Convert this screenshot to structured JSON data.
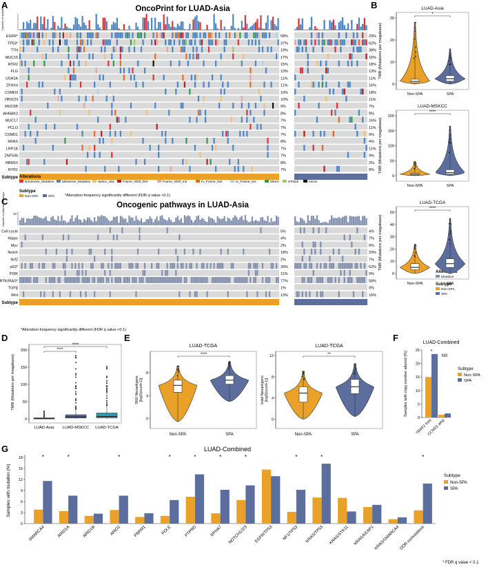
{
  "colors": {
    "non_spa": "#E9A227",
    "spa": "#5B6E9E",
    "teal": "#2E9BAB",
    "grid": "#DADADA",
    "missense": "#4E86C6",
    "nonsense": "#D8353A",
    "splice": "#F2C078",
    "fs_del": "#B22222",
    "fs_ins": "#E7A4A4",
    "if_del": "#E66C2C",
    "if_ins": "#A9D3EA",
    "silent": "#2E9C4A",
    "flank5": "#9ACD5B",
    "intron": "#111111",
    "pathway": "#8391AE"
  },
  "panel_letters": [
    "A",
    "B",
    "C",
    "D",
    "E",
    "F",
    "G"
  ],
  "panel_a": {
    "title": "OncoPrint for LUAD-Asia",
    "y_label": "Number of mutations",
    "genes": [
      "EGFR*",
      "TP53*",
      "TTN",
      "MUC16",
      "RYR2",
      "FLG",
      "USH2A",
      "ZFHX4",
      "CSMD3",
      "OBSCN",
      "MUC5B",
      "AHNAK2",
      "MUC17",
      "PCLO",
      "CSMD1",
      "KRAS",
      "LRP1B",
      "ZNF536",
      "RBM10",
      "RYR1"
    ],
    "left_pct": [
      "58%",
      "37%",
      "19%",
      "17%",
      "15%",
      "13%",
      "11%",
      "11%",
      "10%",
      "10%",
      "9%",
      "8%",
      "7%",
      "7%",
      "7%",
      "8%",
      "7%",
      "7%",
      "8%",
      "7%"
    ],
    "right_pct": [
      "29%",
      "62%",
      "38%",
      "16%",
      "18%",
      "13%",
      "11%",
      "16%",
      "18%",
      "11%",
      "7%",
      "9%",
      "16%",
      "11%",
      "9%",
      "4%",
      "11%",
      "9%",
      "2%",
      "9%"
    ],
    "subtype_label": "Subtype",
    "legend_title_alt": "Alterations",
    "legend_alt": [
      "Nonsense_Mutation",
      "Missense_Mutation",
      "Splice_Site",
      "Frame_Shift_Del",
      "Frame_Shift_Ins",
      "In_Frame_Del",
      "In_Frame_Ins",
      "Silent",
      "5'Flank",
      "Intron"
    ],
    "legend_title_sub": "Subtype",
    "legend_sub": [
      "Non-SPA",
      "SPA"
    ],
    "note": "*Alteration frequency significantly different (FDR q value <0.1)"
  },
  "panel_c": {
    "title": "Oncogenic pathways in LUAD-Asia",
    "y_label": "Number of altered pathways",
    "y_top": "10",
    "pathways": [
      "Cell cycle",
      "Hippo",
      "Myc",
      "Notch",
      "Nrf2",
      "p53*",
      "PI3K",
      "RTK/RAS*",
      "TGFβ",
      "Wnt"
    ],
    "left_pct": [
      "5%",
      "4%",
      "2%",
      "18%",
      "2%",
      "39%",
      "11%",
      "77%",
      "1%",
      "13%"
    ],
    "right_pct": [
      "4%",
      "7%",
      "9%",
      "29%",
      "7%",
      "62%",
      "9%",
      "58%",
      "0%",
      "16%"
    ],
    "subtype_label": "Subtype",
    "legend_title_alt": "Alterations",
    "legend_alt": [
      "Mutation"
    ],
    "legend_title_sub": "Subtype",
    "legend_sub": [
      "Non-SPA",
      "SPA"
    ],
    "note": "*Alteration frequency significantly different (FDR q value <0.1)"
  },
  "chart_data": [
    {
      "id": "B",
      "type": "violin",
      "ylabel": "TMB (Mutations per megabase)",
      "panels": [
        {
          "title": "LUAD-Asia",
          "ylim": [
            0,
            30
          ],
          "ticks": [
            0,
            10,
            20,
            30
          ],
          "sig": "*",
          "groups": [
            {
              "name": "Non-SPA",
              "median": 1.2,
              "q1": 0.6,
              "q3": 2.2,
              "min": 0,
              "max": 28
            },
            {
              "name": "SPA",
              "median": 2.4,
              "q1": 1.3,
              "q3": 3.8,
              "min": 0,
              "max": 16
            }
          ]
        },
        {
          "title": "LUAD-MSKCC",
          "ylim": [
            0,
            200
          ],
          "ticks": [
            0,
            50,
            100,
            150,
            200
          ],
          "sig": "****",
          "groups": [
            {
              "name": "Non-SPA",
              "median": 5,
              "q1": 2,
              "q3": 9,
              "min": 0,
              "max": 48
            },
            {
              "name": "SPA",
              "median": 10,
              "q1": 5,
              "q3": 20,
              "min": 0,
              "max": 165
            }
          ]
        },
        {
          "title": "LUAD-TCGA",
          "ylim": [
            0,
            50
          ],
          "ticks": [
            0,
            10,
            20,
            30,
            40,
            50
          ],
          "sig": "****",
          "groups": [
            {
              "name": "Non-SPA",
              "median": 5,
              "q1": 3,
              "q3": 8,
              "min": 0,
              "max": 24
            },
            {
              "name": "SPA",
              "median": 8,
              "q1": 5,
              "q3": 12,
              "min": 0,
              "max": 45
            }
          ]
        }
      ]
    },
    {
      "id": "D",
      "type": "box",
      "ylabel": "TMB (Mutations per megabase)",
      "ylim": [
        0,
        200
      ],
      "ticks": [
        0,
        50,
        100,
        150,
        200
      ],
      "categories": [
        "LUAD-Asia",
        "LUAD-MSKCC",
        "LUAD-TCGA"
      ],
      "boxes": [
        {
          "median": 1.5,
          "q1": 0.8,
          "q3": 2.8,
          "lower": 0,
          "upper": 6,
          "max": 28
        },
        {
          "median": 6,
          "q1": 2.5,
          "q3": 12,
          "lower": 0,
          "upper": 28,
          "max": 185
        },
        {
          "median": 7,
          "q1": 3,
          "q3": 17,
          "lower": 0,
          "upper": 38,
          "max": 160
        }
      ],
      "comparisons": [
        {
          "from": 0,
          "to": 1,
          "label": "****"
        },
        {
          "from": 0,
          "to": 2,
          "label": "****"
        }
      ]
    },
    {
      "id": "E",
      "type": "violin",
      "panels": [
        {
          "title": "LUAD-TCGA",
          "ylabel": "SNV Neoantigens [log2(count+1)]",
          "ylim": [
            -1,
            11
          ],
          "ticks": [
            0,
            4,
            8
          ],
          "sig": "****",
          "groups": [
            {
              "name": "Non-SPA",
              "median": 5.8,
              "q1": 4.6,
              "q3": 6.7,
              "min": -0.5,
              "max": 9.2
            },
            {
              "name": "SPA",
              "median": 6.7,
              "q1": 6.0,
              "q3": 7.5,
              "min": 3,
              "max": 10
            }
          ]
        },
        {
          "title": "LUAD-TCGA",
          "ylabel": "Indel Neoantigens [log2(count+1)]",
          "ylim": [
            -1,
            12
          ],
          "ticks": [
            0,
            4,
            8,
            12
          ],
          "sig": "**",
          "groups": [
            {
              "name": "Non-SPA",
              "median": 4.9,
              "q1": 3.2,
              "q3": 6.1,
              "min": 0,
              "max": 9
            },
            {
              "name": "SPA",
              "median": 6.1,
              "q1": 4.8,
              "q3": 7.5,
              "min": 0.5,
              "max": 10.5
            }
          ]
        }
      ]
    },
    {
      "id": "F",
      "type": "bar",
      "title": "LUAD-Combined",
      "ylabel": "Samples with copy number altered (%)",
      "ylim": [
        0,
        25
      ],
      "ticks": [
        0,
        5,
        10,
        15,
        20,
        25
      ],
      "categories": [
        "TRAF2 loss",
        "CCND1 amp"
      ],
      "series": [
        {
          "name": "Non-SPA",
          "values": [
            15,
            1
          ]
        },
        {
          "name": "SPA",
          "values": [
            23.5,
            1.5
          ]
        }
      ],
      "sig": [
        "*",
        "NS"
      ],
      "legend_title": "Subtype"
    },
    {
      "id": "G",
      "type": "bar",
      "title": "LUAD-Combined",
      "ylabel": "Samples with mutation (%)",
      "ylim": [
        0,
        18
      ],
      "ticks": [
        0,
        3,
        6,
        9,
        12,
        15,
        18
      ],
      "categories": [
        "SMARCA4",
        "ARID1A",
        "ARID1B",
        "ARID2",
        "PBRM1",
        "POLE",
        "PTPRD",
        "EPHA7",
        "NOTCH1/2/3",
        "EGFR/TP53",
        "NF1/TP53",
        "KRAS/TP53",
        "KRAS/STK11",
        "KRAS/KEAP1",
        "KRAS/SMARCA4",
        "DDR comutations"
      ],
      "series": [
        {
          "name": "Non-SPA",
          "values": [
            3.8,
            3.4,
            2.1,
            3.7,
            1.8,
            2.1,
            7.3,
            2.8,
            6.4,
            14.7,
            3.2,
            7.1,
            7.0,
            4.5,
            1.2,
            3.6
          ]
        },
        {
          "name": "SPA",
          "values": [
            11.6,
            7.6,
            2.7,
            7.6,
            2.8,
            6.4,
            13.4,
            9.2,
            10.4,
            12.9,
            9.2,
            16.3,
            3.3,
            5.1,
            1.7,
            10.9
          ]
        }
      ],
      "sig": [
        "*",
        "*",
        "",
        "*",
        "",
        "*",
        "*",
        "*",
        "*",
        "",
        "*",
        "*",
        "",
        "",
        "",
        "*"
      ],
      "legend_title": "Subtype",
      "footnote": "* FDR q value < 0.1"
    }
  ]
}
